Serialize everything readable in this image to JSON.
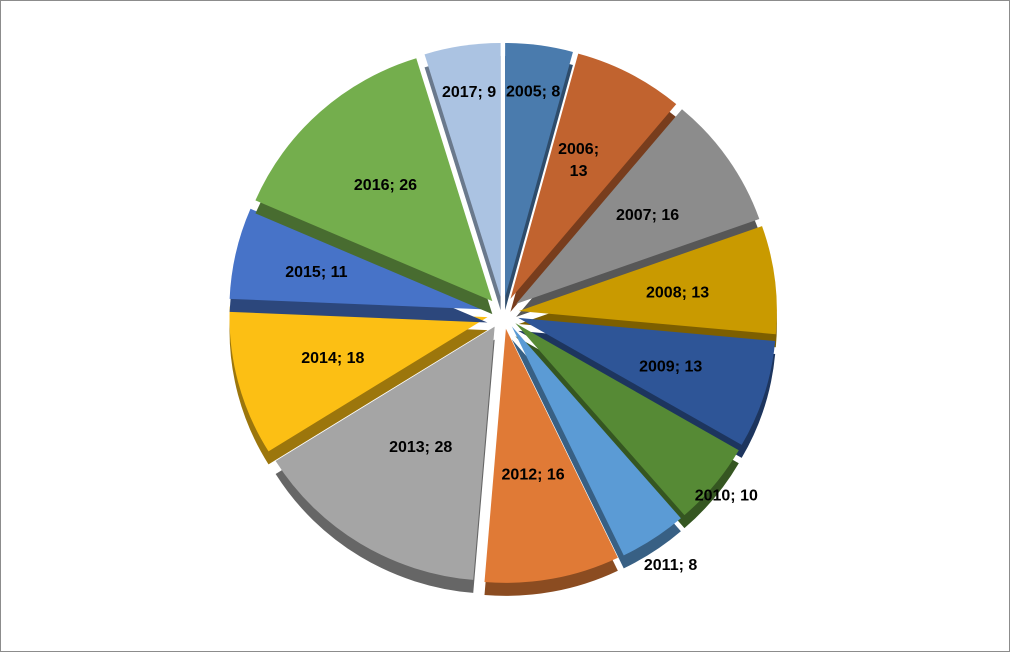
{
  "chart_data": {
    "type": "pie",
    "style": "exploded-3d",
    "title": "",
    "legend": "none",
    "slices": [
      {
        "label": "2005",
        "value": 8,
        "color": "#4a7bad",
        "data_label": "2005; 8"
      },
      {
        "label": "2006",
        "value": 13,
        "color": "#c1632f",
        "data_label": "2006; 13",
        "data_label_lines": [
          "2006;",
          "13"
        ]
      },
      {
        "label": "2007",
        "value": 16,
        "color": "#8c8c8c",
        "data_label": "2007; 16"
      },
      {
        "label": "2008",
        "value": 13,
        "color": "#c99a00",
        "data_label": "2008; 13"
      },
      {
        "label": "2009",
        "value": 13,
        "color": "#2e5597",
        "data_label": "2009; 13"
      },
      {
        "label": "2010",
        "value": 10,
        "color": "#568a35",
        "data_label": "2010; 10"
      },
      {
        "label": "2011",
        "value": 8,
        "color": "#5b9bd5",
        "data_label": "2011; 8"
      },
      {
        "label": "2012",
        "value": 16,
        "color": "#e07a36",
        "data_label": "2012; 16"
      },
      {
        "label": "2013",
        "value": 28,
        "color": "#a5a5a5",
        "data_label": "2013; 28"
      },
      {
        "label": "2014",
        "value": 18,
        "color": "#fcbf14",
        "data_label": "2014; 18"
      },
      {
        "label": "2015",
        "value": 11,
        "color": "#4773c8",
        "data_label": "2015; 11"
      },
      {
        "label": "2016",
        "value": 26,
        "color": "#74ae4d",
        "data_label": "2016; 26"
      },
      {
        "label": "2017",
        "value": 9,
        "color": "#abc3e2",
        "data_label": "2017; 9"
      }
    ]
  }
}
